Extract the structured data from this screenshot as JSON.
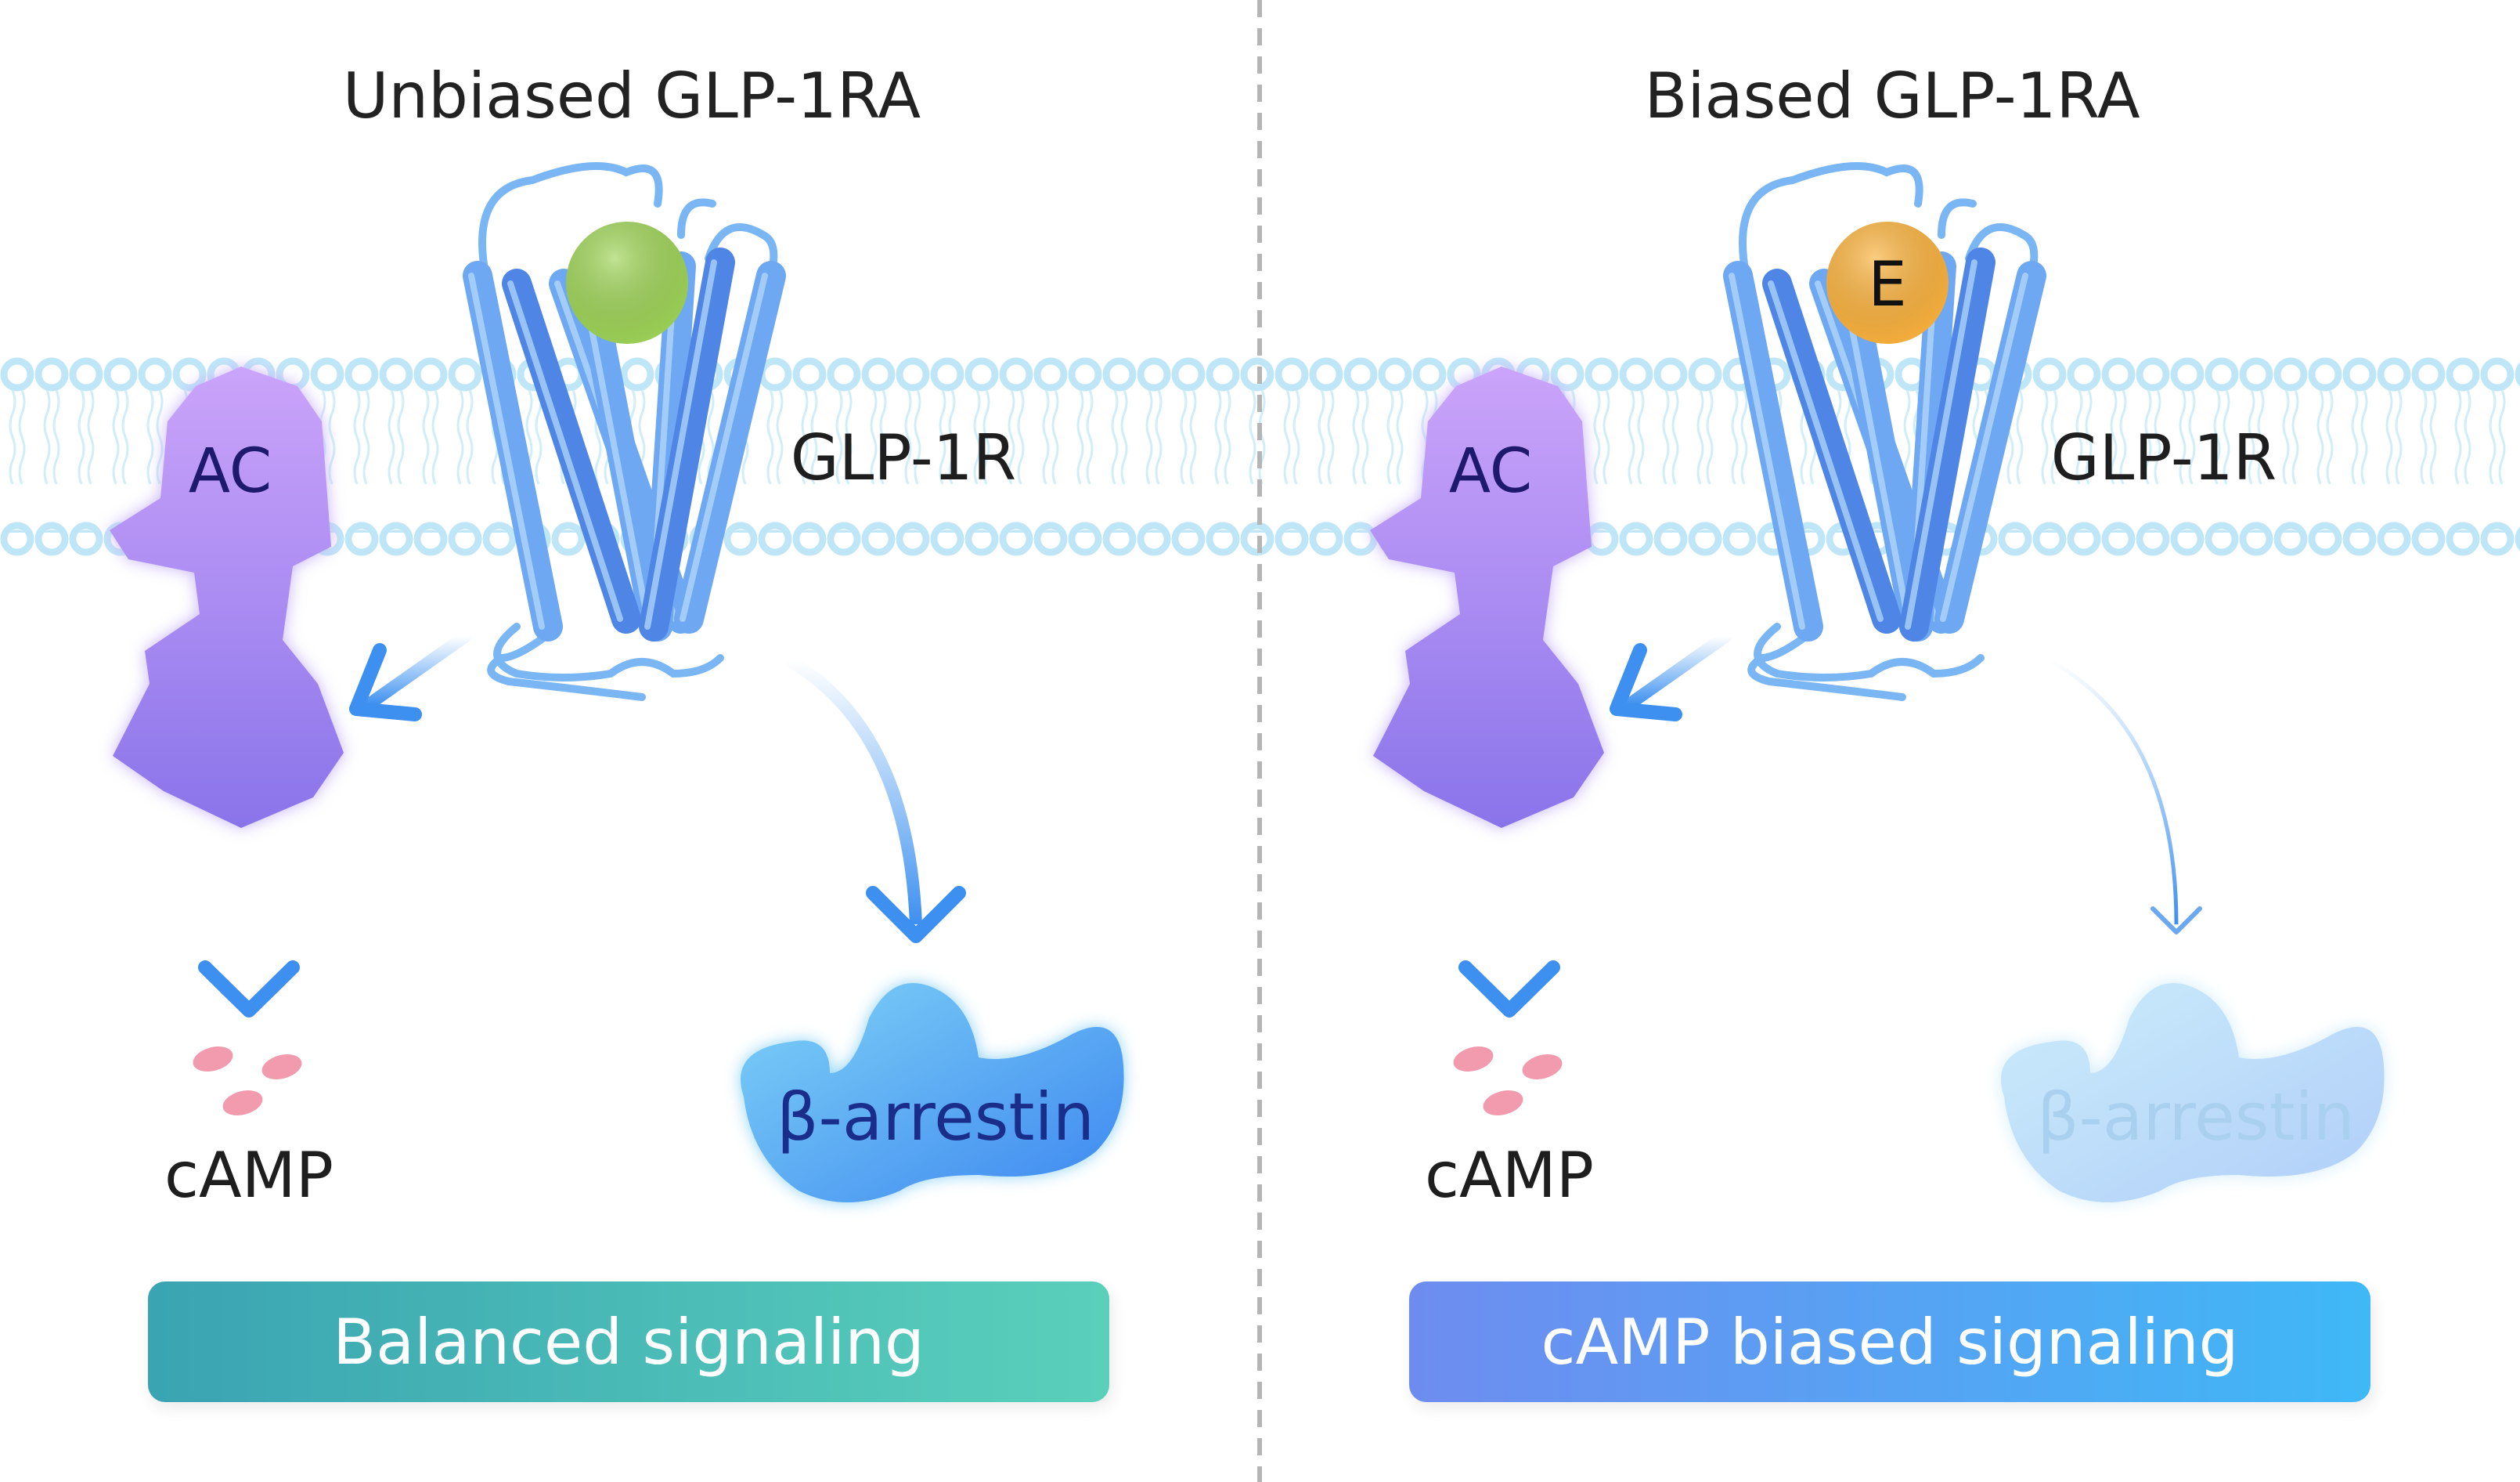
{
  "panels": [
    {
      "title": "Unbiased GLP-1RA",
      "receptor_label": "GLP-1R",
      "enzyme_label": "AC",
      "product_label": "cAMP",
      "arrestin_label": "β-arrestin",
      "ligand_label": "",
      "ligand_color": "#9ed456",
      "arrestin_strength": "strong",
      "banner_label": "Balanced  signaling",
      "banner_colors": [
        "#3aa4b2",
        "#5ad0bb"
      ]
    },
    {
      "title": "Biased GLP-1RA",
      "receptor_label": "GLP-1R",
      "enzyme_label": "AC",
      "product_label": "cAMP",
      "arrestin_label": "β-arrestin",
      "ligand_label": "E",
      "ligand_color": "#fbb23c",
      "arrestin_strength": "weak",
      "banner_label": "cAMP biased signaling",
      "banner_colors": [
        "#6e8cf0",
        "#3fb8f6"
      ]
    }
  ],
  "colors": {
    "membrane": "#bfe6f7",
    "receptor": "#4a8ef0",
    "enzyme": "#a98af2",
    "camp": "#f2a0b0",
    "divider": "#b5b5b5"
  }
}
